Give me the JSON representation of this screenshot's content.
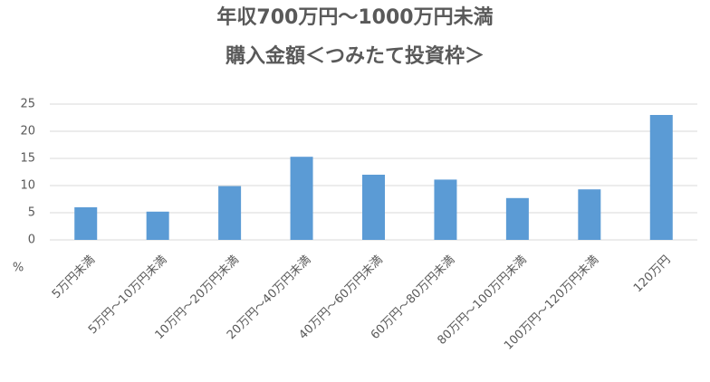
{
  "chart_data": {
    "type": "bar",
    "title": "年収700万円～1000万円未満",
    "subtitle": "購入金額＜つみたて投資枠＞",
    "y_label": "%",
    "categories": [
      "5万円未満",
      "5万円～10万円未満",
      "10万円～20万円未満",
      "20万円～40万円未満",
      "40万円～60万円未満",
      "60万円～80万円未満",
      "80万円～100万円未満",
      "100万円～120万円未満",
      "120万円"
    ],
    "values": [
      6.0,
      5.2,
      9.9,
      15.3,
      12.0,
      11.1,
      7.7,
      9.3,
      23.0
    ],
    "color": "#5b9bd5",
    "ylim": [
      0,
      25
    ],
    "yticks": [
      0,
      5,
      10,
      15,
      20,
      25
    ],
    "grid": true
  }
}
